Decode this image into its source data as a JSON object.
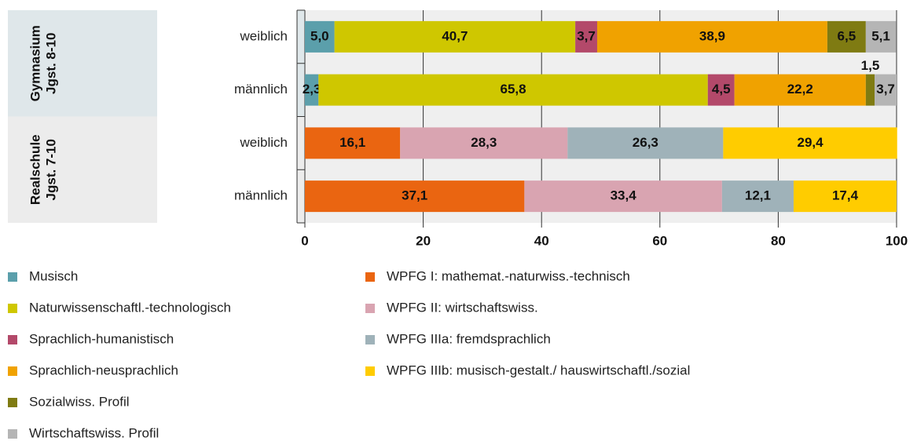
{
  "chart_data": {
    "type": "bar",
    "orientation": "horizontal",
    "stacked": true,
    "groups": [
      {
        "lines": [
          "Gymnasium",
          "Jgst. 8-10"
        ],
        "categories": [
          "weiblich",
          "männlich"
        ]
      },
      {
        "lines": [
          "Realschule",
          "Jgst. 7-10"
        ],
        "categories": [
          "weiblich",
          "männlich"
        ]
      }
    ],
    "xlim": [
      0,
      100
    ],
    "xticks": [
      0,
      20,
      40,
      60,
      80,
      100
    ],
    "grid": true,
    "series": [
      {
        "name": "Musisch",
        "color": "#5b9fab",
        "values": [
          5.0,
          2.3,
          null,
          null
        ],
        "value_labels": [
          "5,0",
          "2,3",
          null,
          null
        ]
      },
      {
        "name": "Naturwissenschaftl.-technologisch",
        "color": "#cfc700",
        "values": [
          40.7,
          65.8,
          null,
          null
        ],
        "value_labels": [
          "40,7",
          "65,8",
          null,
          null
        ]
      },
      {
        "name": "Sprachlich-humanistisch",
        "color": "#b3496a",
        "values": [
          3.7,
          4.5,
          null,
          null
        ],
        "value_labels": [
          "3,7",
          "4,5",
          null,
          null
        ]
      },
      {
        "name": "Sprachlich-neusprachlich",
        "color": "#f0a200",
        "values": [
          38.9,
          22.2,
          null,
          null
        ],
        "value_labels": [
          "38,9",
          "22,2",
          null,
          null
        ]
      },
      {
        "name": "Sozialwiss. Profil",
        "color": "#7f7b12",
        "values": [
          6.5,
          1.5,
          null,
          null
        ],
        "value_labels": [
          "6,5",
          "1,5",
          null,
          null
        ]
      },
      {
        "name": "Wirtschaftswiss. Profil",
        "color": "#b5b5b5",
        "values": [
          5.1,
          3.7,
          null,
          null
        ],
        "value_labels": [
          "5,1",
          "3,7",
          null,
          null
        ]
      },
      {
        "name": "WPFG I: mathemat.-naturwiss.-technisch",
        "color": "#ea6511",
        "values": [
          null,
          null,
          16.1,
          37.1
        ],
        "value_labels": [
          null,
          null,
          "16,1",
          "37,1"
        ]
      },
      {
        "name": "WPFG II: wirtschaftswiss.",
        "color": "#d9a4b1",
        "values": [
          null,
          null,
          28.3,
          33.4
        ],
        "value_labels": [
          null,
          null,
          "28,3",
          "33,4"
        ]
      },
      {
        "name": "WPFG IIIa: fremdsprachlich",
        "color": "#9fb2b9",
        "values": [
          null,
          null,
          26.3,
          12.1
        ],
        "value_labels": [
          null,
          null,
          "26,3",
          "12,1"
        ]
      },
      {
        "name": "WPFG IIIb: musisch-gestalt./ hauswirtschaftl./sozial",
        "color": "#ffcc00",
        "values": [
          null,
          null,
          29.4,
          17.4
        ],
        "value_labels": [
          null,
          null,
          "29,4",
          "17,4"
        ]
      }
    ]
  }
}
